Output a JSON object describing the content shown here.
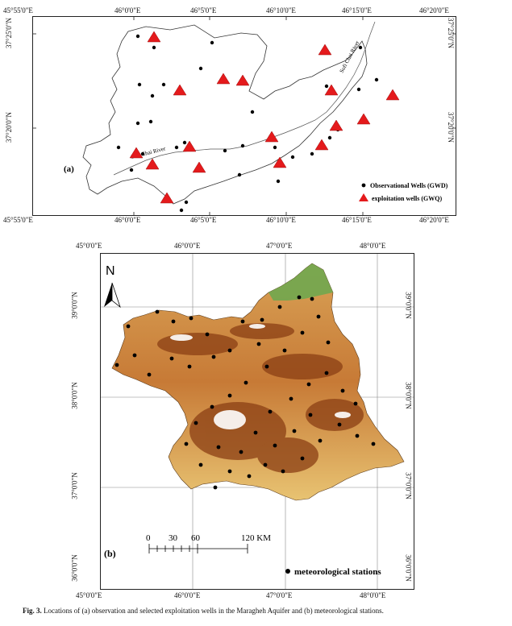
{
  "panel_a": {
    "label": "(a)",
    "lon_ticks": [
      "45°55'0\"E",
      "46°0'0\"E",
      "46°5'0\"E",
      "46°10'0\"E",
      "46°15'0\"E",
      "46°20'0\"E"
    ],
    "lat_ticks": [
      "37°25'0\"N",
      "37°20'0\"N"
    ],
    "river_label_1": "Sofi Chai River",
    "river_label_2": "Sofi Chai River",
    "legend": {
      "observational": "Observational Wells (GWD)",
      "exploitation": "exploitation wells (GWQ)"
    },
    "colors": {
      "triangle": "#e41a1c",
      "dot": "#000000"
    }
  },
  "panel_b": {
    "label": "(b)",
    "north_label": "N",
    "lon_ticks": [
      "45°0'0\"E",
      "46°0'0\"E",
      "47°0'0\"E",
      "48°0'0\"E"
    ],
    "lat_ticks": [
      "39°0'0\"N",
      "38°0'0\"N",
      "37°0'0\"N",
      "36°0'0\"N"
    ],
    "scale_bar": {
      "labels": [
        "0",
        "30",
        "60",
        "120 KM"
      ]
    },
    "legend": {
      "stations": "meteorological stations"
    },
    "colors": {
      "low": "#e8c372",
      "mid": "#c77a36",
      "high": "#8b3f14",
      "north": "#6aa84f",
      "snow": "#ffffff"
    }
  },
  "caption": {
    "prefix": "Fig. 3.",
    "text": "Locations of (a) observation and selected exploitation wells in the Maragheh Aquifer and (b) meteorological stations."
  }
}
